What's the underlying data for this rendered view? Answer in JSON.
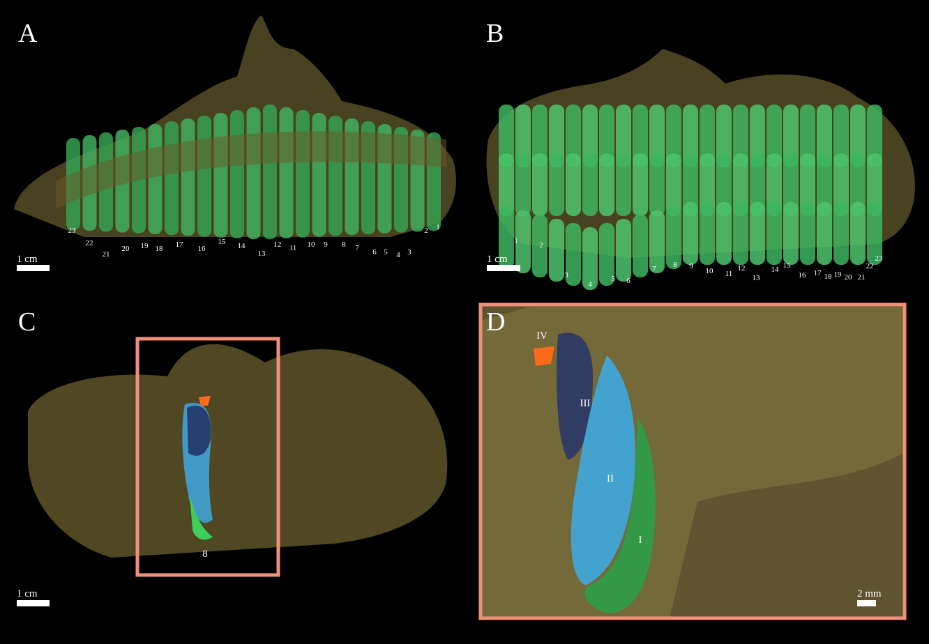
{
  "panels": [
    {
      "label": "A",
      "scale_bar": "1 cm",
      "tooth_numbers": [
        "1",
        "2",
        "3",
        "4",
        "5",
        "6",
        "7",
        "8",
        "9",
        "10",
        "11",
        "12",
        "13",
        "14",
        "15",
        "16",
        "17",
        "18",
        "19",
        "20",
        "21",
        "22",
        "23"
      ]
    },
    {
      "label": "B",
      "scale_bar": "1 cm",
      "tooth_numbers": [
        "1",
        "2",
        "3",
        "4",
        "5",
        "6",
        "7",
        "8",
        "9",
        "10",
        "11",
        "12",
        "13",
        "14",
        "15",
        "16",
        "17",
        "18",
        "19",
        "20",
        "21",
        "22",
        "23"
      ]
    },
    {
      "label": "C",
      "scale_bar": "1 cm",
      "tooth_numbers": [
        "8"
      ]
    },
    {
      "label": "D",
      "scale_bar": "2 mm",
      "generations": [
        "IV",
        "III",
        "II",
        "I"
      ]
    }
  ]
}
